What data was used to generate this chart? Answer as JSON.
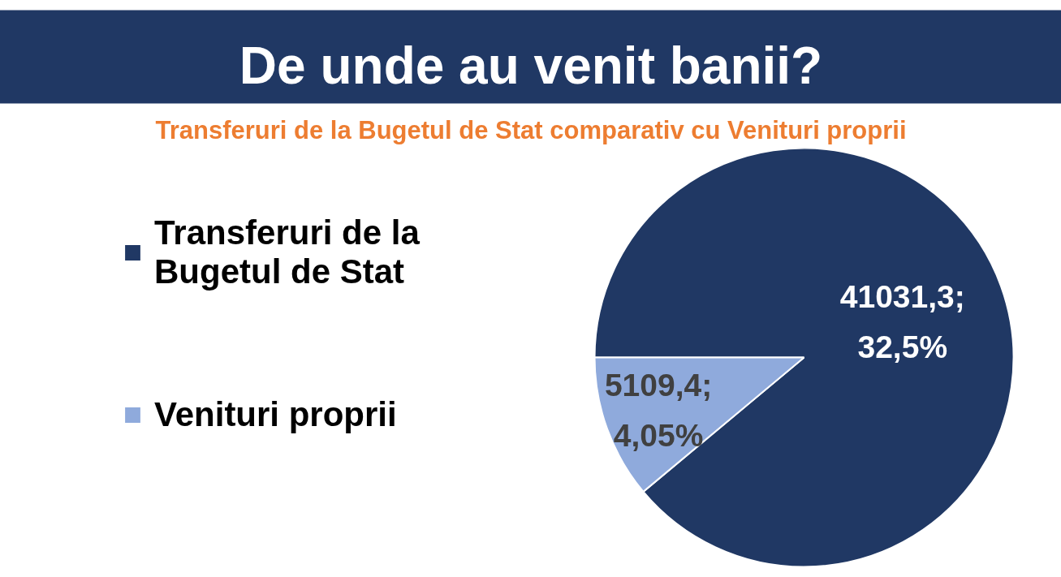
{
  "chart_data": {
    "type": "pie",
    "title": "De unde au venit banii?",
    "subtitle": "Transferuri de la Bugetul de Stat comparativ cu Venituri proprii",
    "categories": [
      "Transferuri de la Bugetul de Stat",
      "Venituri proprii"
    ],
    "values": [
      41031.3,
      5109.4
    ],
    "colors": [
      "#203864",
      "#8faadc"
    ],
    "value_labels": [
      "41031,3; 32,5%",
      "5109,4; 4,05%"
    ],
    "legend": "left"
  }
}
